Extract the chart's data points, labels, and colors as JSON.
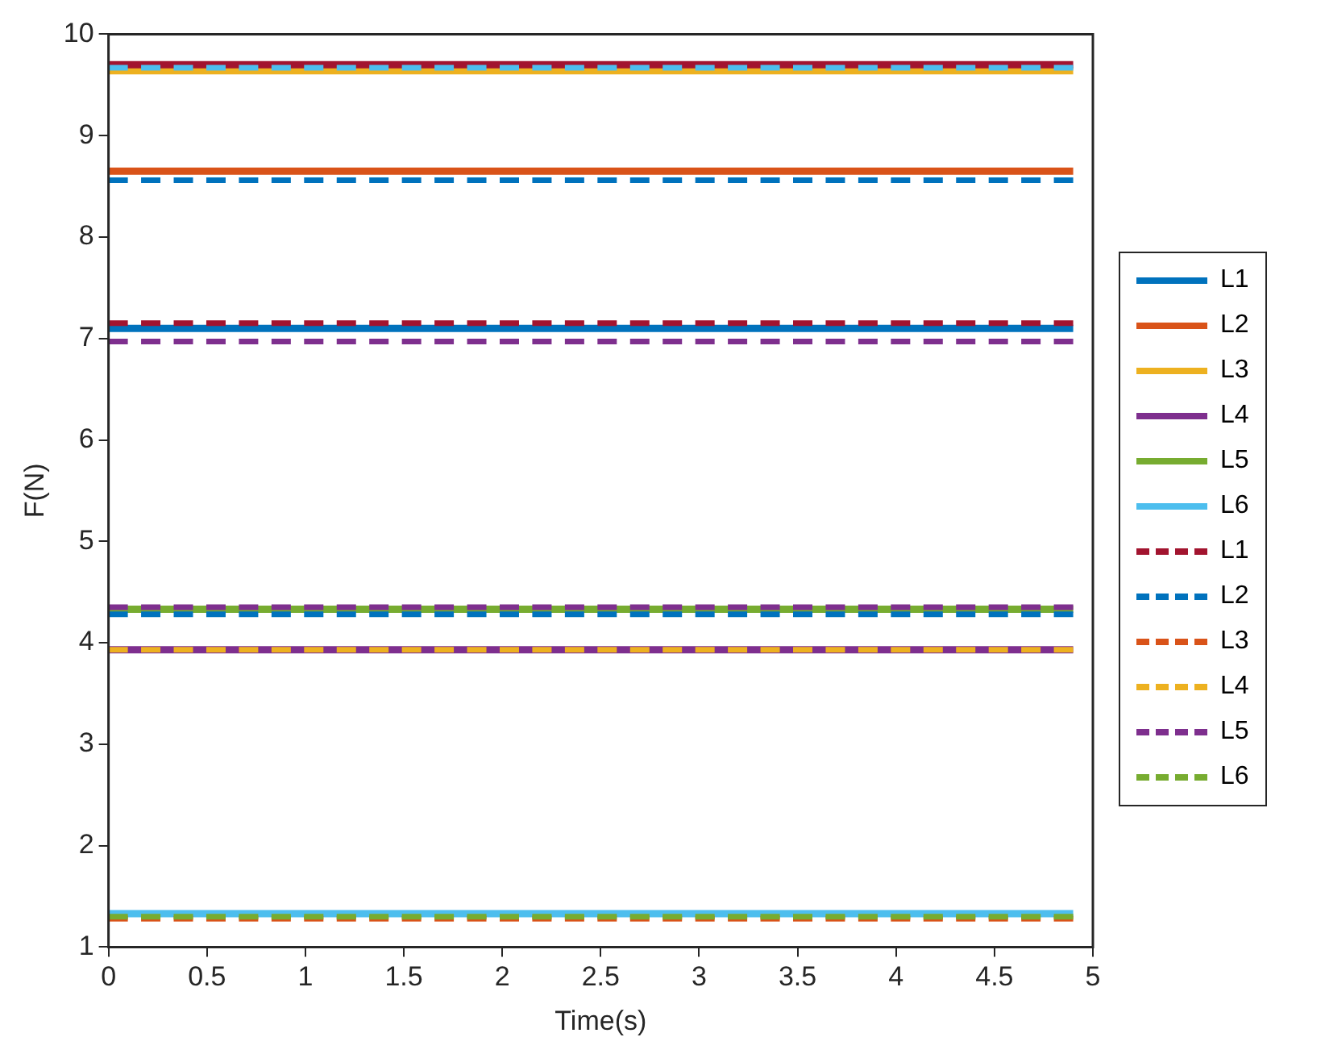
{
  "chart_data": {
    "type": "line",
    "xlabel": "Time(s)",
    "ylabel": "F(N)",
    "xlim": [
      0,
      5
    ],
    "xticks": [
      0,
      0.5,
      1,
      1.5,
      2,
      2.5,
      3,
      3.5,
      4,
      4.5,
      5
    ],
    "ylim": [
      1,
      10
    ],
    "yticks": [
      1,
      2,
      3,
      4,
      5,
      6,
      7,
      8,
      9,
      10
    ],
    "grid": false,
    "legend": "right",
    "marker": "none",
    "x": [
      0,
      4.9
    ],
    "series": [
      {
        "name": "L1",
        "color": "#0072bd",
        "values": [
          7.1,
          7.1
        ],
        "line_style": "solid"
      },
      {
        "name": "L2",
        "color": "#d95319",
        "values": [
          8.65,
          8.65
        ],
        "line_style": "solid"
      },
      {
        "name": "L3",
        "color": "#edb120",
        "values": [
          9.64,
          9.64
        ],
        "line_style": "solid"
      },
      {
        "name": "L4",
        "color": "#7e2f8e",
        "values": [
          3.93,
          3.93
        ],
        "line_style": "solid"
      },
      {
        "name": "L5",
        "color": "#77ac30",
        "values": [
          4.33,
          4.33
        ],
        "line_style": "solid"
      },
      {
        "name": "L6",
        "color": "#4dbeee",
        "values": [
          1.33,
          1.33
        ],
        "line_style": "solid"
      },
      {
        "name": "L1",
        "color": "#a2142f",
        "values": [
          7.15,
          7.15
        ],
        "line_style": "dashed"
      },
      {
        "name": "L2",
        "color": "#0072bd",
        "values": [
          8.56,
          8.56
        ],
        "line_style": "dashed"
      },
      {
        "name": "L3",
        "color": "#d95319",
        "values": [
          1.28,
          1.28
        ],
        "line_style": "dashed"
      },
      {
        "name": "L4",
        "color": "#edb120",
        "values": [
          3.93,
          3.93
        ],
        "line_style": "dashed"
      },
      {
        "name": "L5",
        "color": "#7e2f8e",
        "values": [
          6.97,
          6.97
        ],
        "line_style": "dashed"
      },
      {
        "name": "L6",
        "color": "#77ac30",
        "values": [
          1.3,
          1.3
        ],
        "line_style": "dashed"
      },
      {
        "color": "#a2142f",
        "values": [
          9.7,
          9.7
        ],
        "line_style": "solid"
      },
      {
        "color": "#4dbeee",
        "values": [
          9.67,
          9.67
        ],
        "line_style": "dashed"
      },
      {
        "color": "#0072bd",
        "values": [
          4.28,
          4.28
        ],
        "line_style": "dashed"
      },
      {
        "color": "#7e2f8e",
        "values": [
          4.35,
          4.35
        ],
        "line_style": "dashed"
      }
    ]
  }
}
